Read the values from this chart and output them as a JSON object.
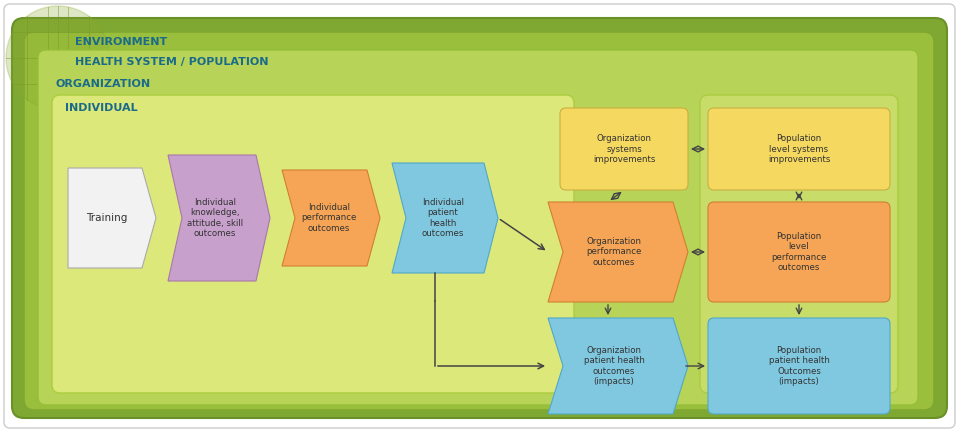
{
  "fig_width": 9.59,
  "fig_height": 4.32,
  "bg_white": "#ffffff",
  "bg_outer": "#7fa832",
  "bg_health": "#9abf3c",
  "bg_org": "#b8d458",
  "bg_individual": "#dde87a",
  "bg_pop": "#c8dc6a",
  "label_color": "#1a6b8a",
  "colors": {
    "training": "#f2f2f2",
    "training_edge": "#aaaaaa",
    "knowledge": "#c8a0cc",
    "knowledge_edge": "#a878aa",
    "ind_perf": "#f5a555",
    "ind_perf_edge": "#d08030",
    "ind_patient": "#80c8e0",
    "ind_patient_edge": "#50a8c8",
    "org_systems": "#f5d860",
    "org_systems_edge": "#c8b040",
    "org_perf": "#f5a555",
    "org_perf_edge": "#d08030",
    "org_patient": "#80c8e0",
    "org_patient_edge": "#50a8c8",
    "pop_systems": "#f5d860",
    "pop_systems_edge": "#c8b040",
    "pop_perf": "#f5a555",
    "pop_perf_edge": "#d08030",
    "pop_patient": "#80c8e0",
    "pop_patient_edge": "#50a8c8",
    "arrow": "#444444"
  },
  "labels": {
    "environment": "ENVIRONMENT",
    "health_system": "HEALTH SYSTEM / POPULATION",
    "organization": "ORGANIZATION",
    "individual": "INDIVIDUAL",
    "training": "Training",
    "knowledge": "Individual\nknowledge,\nattitude, skill\noutcomes",
    "ind_perf": "Individual\nperformance\noutcomes",
    "ind_patient": "Individual\npatient\nhealth\noutcomes",
    "org_systems": "Organization\nsystems\nimprovements",
    "org_perf": "Organization\nperformance\noutcomes",
    "org_patient": "Organization\npatient health\noutcomes\n(impacts)",
    "pop_systems": "Population\nlevel systems\nimprovements",
    "pop_perf": "Population\nlevel\nperformance\noutcomes",
    "pop_patient": "Population\npatient health\nOutcomes\n(impacts)"
  }
}
